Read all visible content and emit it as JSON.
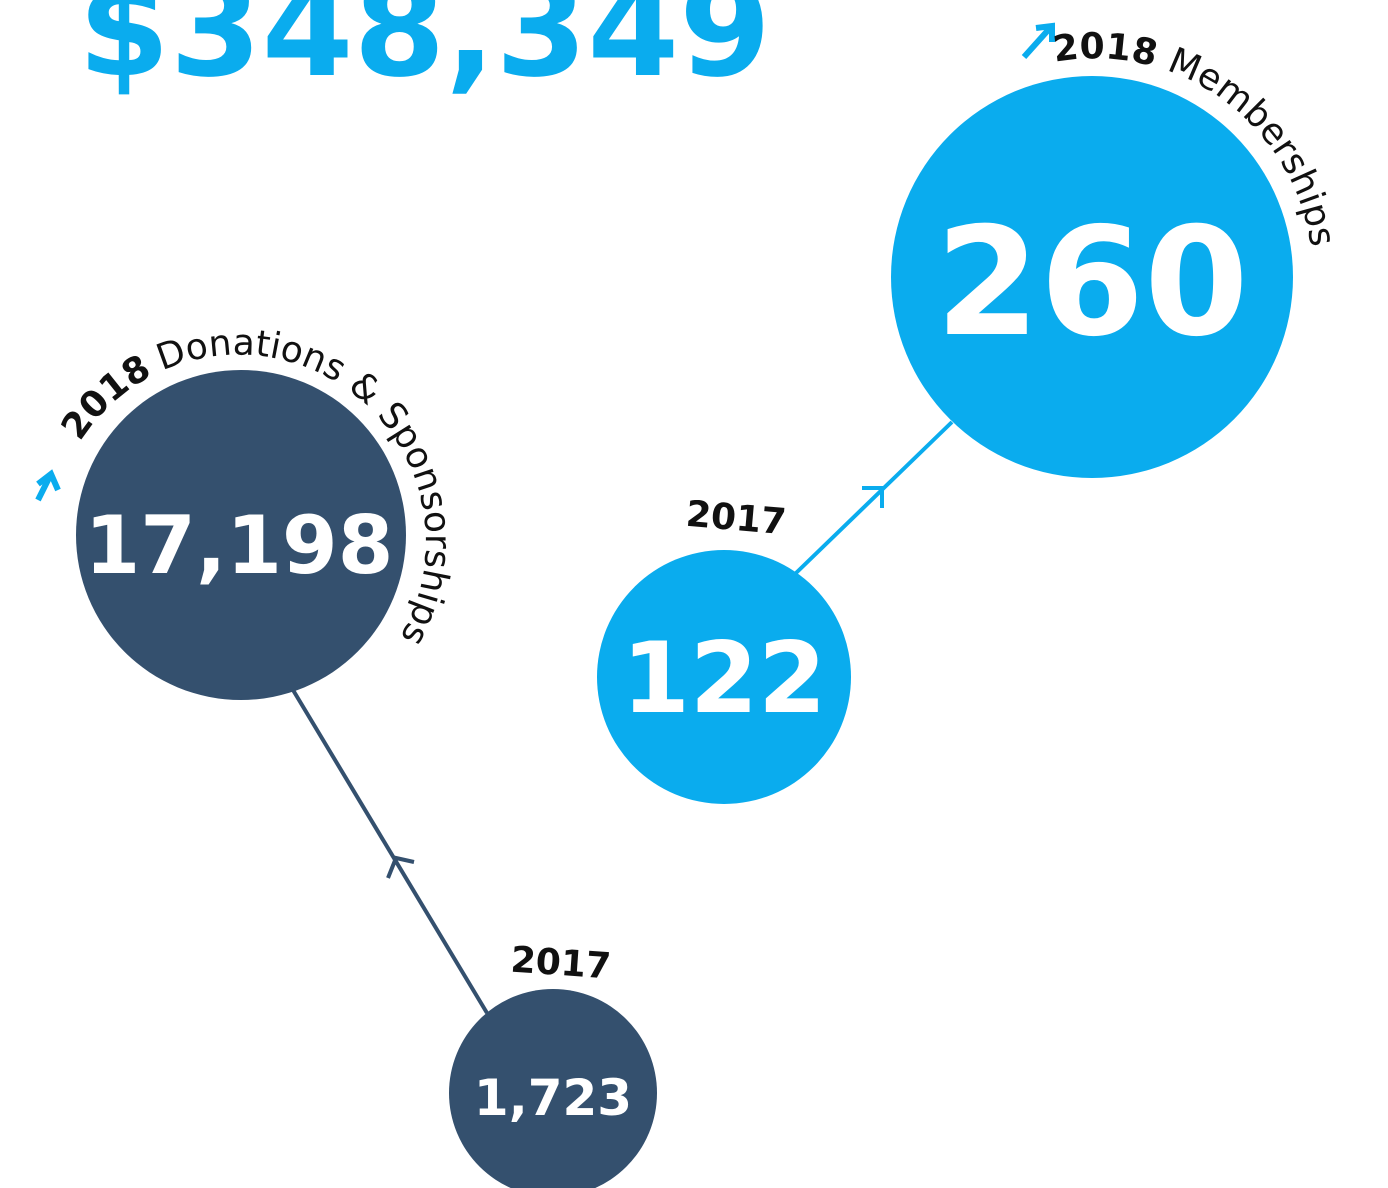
{
  "headline": "$348,349",
  "memberships": {
    "year_2018": "2018",
    "label": "Memberships",
    "value_2018": "260",
    "year_2017": "2017",
    "value_2017": "122"
  },
  "donations": {
    "year_2018": "2018",
    "label": "Donations & Sponsorships",
    "value_2018": "17,198",
    "year_2017": "2017",
    "value_2017": "1,723"
  }
}
